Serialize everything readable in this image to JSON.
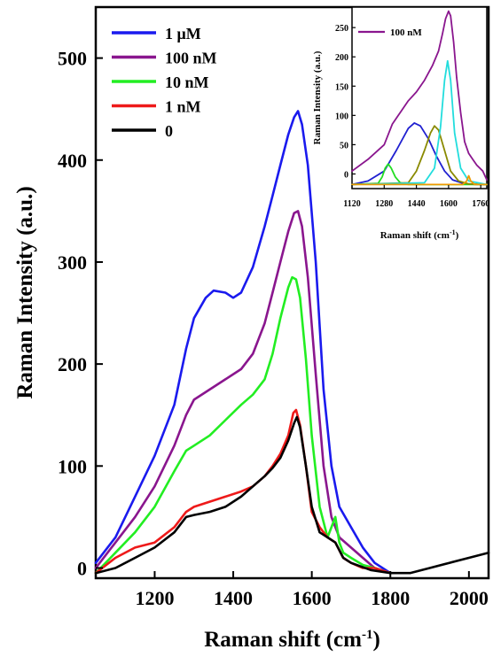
{
  "chart_data": [
    {
      "type": "line",
      "xlabel": "Raman shift (cm",
      "xlabel_sup": "-1",
      "xlabel_end": ")",
      "ylabel": "Raman Intensity (a.u.)",
      "xlim": [
        1050,
        2050
      ],
      "ylim": [
        -10,
        550
      ],
      "x_ticks": [
        1200,
        1400,
        1600,
        1800,
        2000
      ],
      "y_ticks": [
        0,
        100,
        200,
        300,
        400,
        500
      ],
      "legend_position": "top-left",
      "series": [
        {
          "name": "1 μM",
          "color": "#1a1aee",
          "x": [
            1050,
            1100,
            1150,
            1200,
            1250,
            1280,
            1300,
            1330,
            1350,
            1380,
            1400,
            1420,
            1450,
            1480,
            1500,
            1520,
            1540,
            1555,
            1565,
            1575,
            1590,
            1610,
            1630,
            1650,
            1670,
            1700,
            1730,
            1760,
            1800
          ],
          "y": [
            5,
            30,
            70,
            110,
            160,
            215,
            245,
            265,
            272,
            270,
            265,
            270,
            295,
            335,
            365,
            395,
            425,
            442,
            448,
            435,
            395,
            300,
            175,
            100,
            60,
            40,
            20,
            5,
            -5
          ]
        },
        {
          "name": "100 nM",
          "color": "#8a168e",
          "x": [
            1050,
            1100,
            1150,
            1200,
            1250,
            1280,
            1300,
            1340,
            1380,
            1420,
            1450,
            1480,
            1500,
            1520,
            1540,
            1555,
            1565,
            1575,
            1590,
            1610,
            1630,
            1650,
            1670,
            1700,
            1730,
            1760,
            1800
          ],
          "y": [
            0,
            25,
            50,
            80,
            120,
            150,
            165,
            175,
            185,
            195,
            210,
            240,
            270,
            300,
            330,
            348,
            350,
            335,
            285,
            190,
            100,
            50,
            30,
            20,
            10,
            0,
            -5
          ]
        },
        {
          "name": "10 nM",
          "color": "#22ee22",
          "x": [
            1050,
            1100,
            1150,
            1200,
            1250,
            1280,
            1300,
            1340,
            1380,
            1420,
            1450,
            1480,
            1500,
            1520,
            1540,
            1550,
            1560,
            1570,
            1585,
            1600,
            1620,
            1640,
            1660,
            1670,
            1680,
            1700,
            1730,
            1760,
            1800
          ],
          "y": [
            -5,
            15,
            35,
            60,
            95,
            115,
            120,
            130,
            145,
            160,
            170,
            185,
            210,
            245,
            275,
            285,
            283,
            265,
            205,
            130,
            60,
            30,
            50,
            25,
            15,
            10,
            3,
            0,
            -5
          ]
        },
        {
          "name": "1 nM",
          "color": "#ee1a1a",
          "x": [
            1050,
            1100,
            1150,
            1200,
            1250,
            1280,
            1300,
            1340,
            1380,
            1420,
            1450,
            1480,
            1500,
            1520,
            1540,
            1553,
            1560,
            1570,
            1585,
            1600,
            1620,
            1640,
            1660,
            1680,
            1700,
            1730,
            1760,
            1800
          ],
          "y": [
            -5,
            10,
            20,
            25,
            40,
            55,
            60,
            65,
            70,
            75,
            80,
            90,
            100,
            112,
            130,
            152,
            155,
            140,
            100,
            55,
            40,
            30,
            25,
            10,
            5,
            0,
            0,
            -5
          ]
        },
        {
          "name": "0",
          "color": "#000000",
          "x": [
            1050,
            1100,
            1150,
            1200,
            1250,
            1280,
            1300,
            1340,
            1380,
            1420,
            1450,
            1480,
            1500,
            1520,
            1540,
            1555,
            1562,
            1570,
            1585,
            1600,
            1620,
            1640,
            1660,
            1680,
            1700,
            1750,
            1800,
            1850,
            1900,
            1950,
            2000,
            2050
          ],
          "y": [
            -5,
            0,
            10,
            20,
            35,
            50,
            52,
            55,
            60,
            70,
            80,
            90,
            98,
            108,
            125,
            142,
            148,
            138,
            100,
            60,
            35,
            30,
            25,
            10,
            5,
            -2,
            -5,
            -5,
            0,
            5,
            10,
            15
          ]
        }
      ]
    },
    {
      "type": "line",
      "xlabel": "Raman shift (cm",
      "xlabel_sup": "-1",
      "xlabel_end": ")",
      "ylabel": "Raman Intensity (a.u.)",
      "xlim": [
        1120,
        1790
      ],
      "ylim": [
        -25,
        285
      ],
      "x_ticks": [
        1120,
        1280,
        1440,
        1600,
        1760
      ],
      "y_ticks": [
        0,
        50,
        100,
        150,
        200,
        250
      ],
      "legend_position": "top-left",
      "series": [
        {
          "name": "100 nM",
          "color": "#8a168e",
          "x": [
            1120,
            1200,
            1280,
            1320,
            1350,
            1400,
            1440,
            1480,
            1520,
            1550,
            1570,
            1585,
            1600,
            1610,
            1625,
            1640,
            1660,
            1680,
            1700,
            1720,
            1740,
            1770,
            1790
          ],
          "y": [
            5,
            25,
            50,
            85,
            100,
            125,
            140,
            160,
            185,
            210,
            240,
            265,
            278,
            270,
            225,
            165,
            105,
            55,
            35,
            25,
            15,
            5,
            -10
          ]
        },
        {
          "color": "#2020d0",
          "x": [
            1120,
            1200,
            1280,
            1340,
            1400,
            1430,
            1460,
            1500,
            1540,
            1580,
            1620,
            1680,
            1740,
            1790
          ],
          "y": [
            -18,
            -12,
            5,
            40,
            78,
            87,
            82,
            60,
            30,
            5,
            -10,
            -17,
            -18,
            -18
          ]
        },
        {
          "color": "#22dd22",
          "x": [
            1120,
            1250,
            1270,
            1285,
            1300,
            1315,
            1335,
            1360,
            1400,
            1790
          ],
          "y": [
            -18,
            -16,
            -5,
            10,
            17,
            10,
            -5,
            -15,
            -18,
            -18
          ]
        },
        {
          "color": "#8a8a00",
          "x": [
            1120,
            1400,
            1440,
            1480,
            1510,
            1530,
            1550,
            1580,
            1610,
            1650,
            1700,
            1790
          ],
          "y": [
            -18,
            -15,
            5,
            40,
            70,
            82,
            75,
            40,
            5,
            -12,
            -17,
            -18
          ]
        },
        {
          "color": "#22dddd",
          "x": [
            1120,
            1480,
            1530,
            1560,
            1580,
            1595,
            1610,
            1630,
            1660,
            1700,
            1790
          ],
          "y": [
            -18,
            -15,
            10,
            80,
            160,
            193,
            160,
            70,
            10,
            -12,
            -18
          ]
        },
        {
          "color": "#ee9900",
          "x": [
            1120,
            1670,
            1690,
            1700,
            1710,
            1730,
            1790
          ],
          "y": [
            -18,
            -18,
            -12,
            -3,
            -12,
            -18,
            -18
          ]
        }
      ]
    }
  ]
}
